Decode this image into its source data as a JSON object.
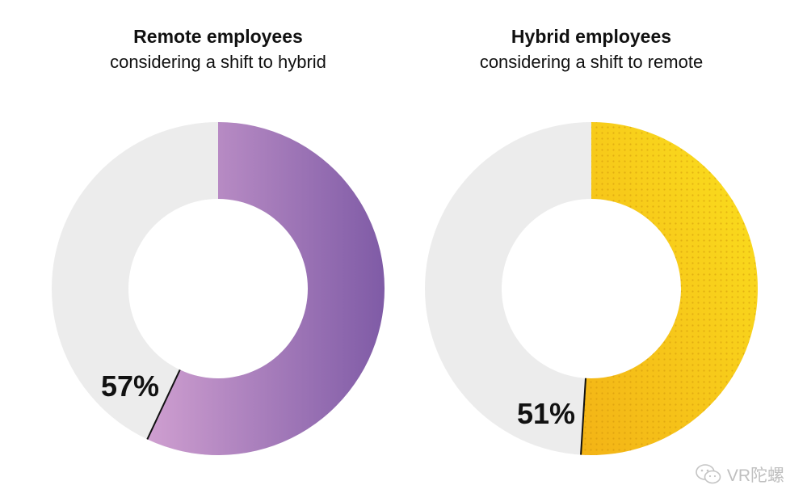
{
  "chart_data": [
    {
      "type": "pie",
      "title": "Remote employees",
      "subtitle": "considering a shift to hybrid",
      "value_percent": 57,
      "label": "57%",
      "colors": {
        "fill_start": "#cf9fd0",
        "fill_end": "#7f5ba6",
        "remainder": "#ececec"
      }
    },
    {
      "type": "pie",
      "title": "Hybrid employees",
      "subtitle": "considering a shift to remote",
      "value_percent": 51,
      "label": "51%",
      "colors": {
        "fill_start": "#f3b316",
        "fill_end": "#fbe11e",
        "remainder": "#ececec"
      }
    }
  ],
  "watermark": {
    "text": "VR陀螺",
    "icon": "wechat-icon"
  }
}
